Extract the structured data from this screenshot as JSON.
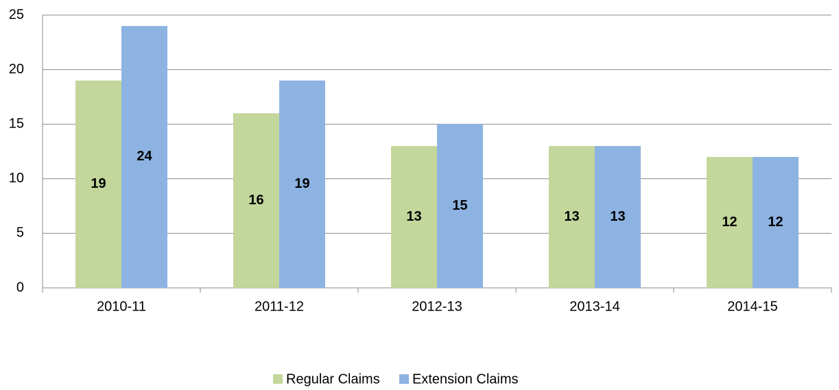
{
  "chart_data": {
    "type": "bar",
    "categories": [
      "2010-11",
      "2011-12",
      "2012-13",
      "2013-14",
      "2014-15"
    ],
    "series": [
      {
        "name": "Regular Claims",
        "color": "#c3d69b",
        "values": [
          19,
          16,
          13,
          13,
          12
        ]
      },
      {
        "name": "Extension Claims",
        "color": "#8db3e2",
        "values": [
          24,
          19,
          15,
          13,
          12
        ]
      }
    ],
    "ylim": [
      0,
      25
    ],
    "yticks": [
      0,
      5,
      10,
      15,
      20,
      25
    ],
    "grid": true,
    "legend": "bottom"
  }
}
